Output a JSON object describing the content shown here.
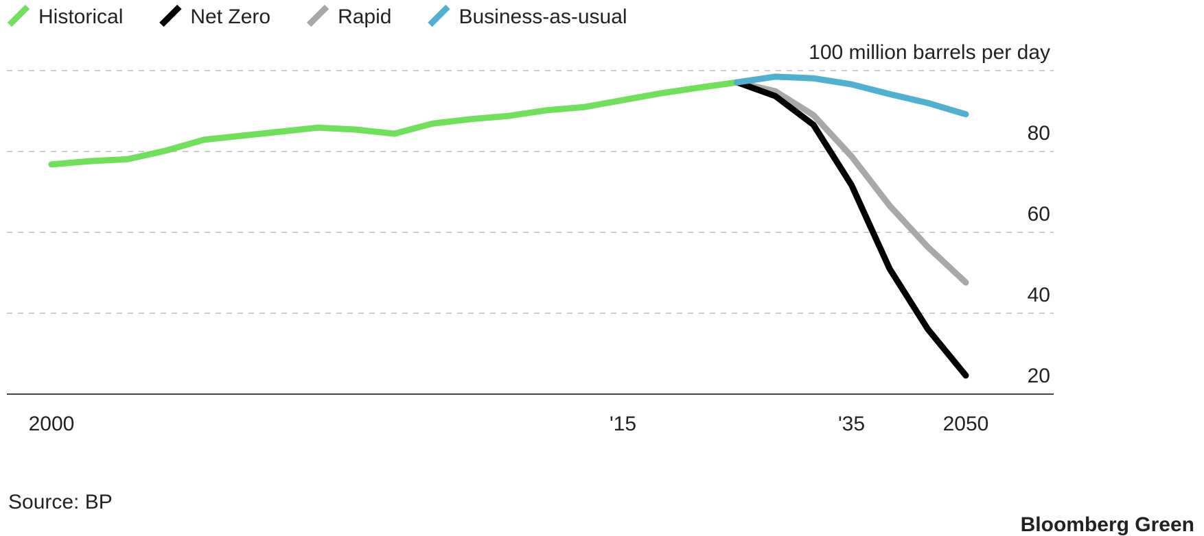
{
  "chart_data": {
    "type": "line",
    "categories": [
      "2000",
      null,
      null,
      null,
      null,
      null,
      null,
      null,
      null,
      null,
      null,
      null,
      null,
      null,
      null,
      "'15",
      null,
      null,
      null,
      null,
      null,
      "'35",
      null,
      null,
      "2050"
    ],
    "series": [
      {
        "name": "Historical",
        "color": "#6ee05a",
        "values": [
          76.8,
          77.6,
          78.1,
          80.2,
          82.9,
          83.9,
          84.9,
          85.9,
          85.4,
          84.4,
          86.9,
          88.0,
          88.8,
          90.2,
          91.0,
          92.7,
          94.4,
          95.8,
          97.1,
          null,
          null,
          null,
          null,
          null,
          null
        ]
      },
      {
        "name": "Net Zero",
        "color": "#000000",
        "values": [
          null,
          null,
          null,
          null,
          null,
          null,
          null,
          null,
          null,
          null,
          null,
          null,
          null,
          null,
          null,
          null,
          null,
          null,
          97.1,
          93.7,
          86.6,
          71.7,
          51.0,
          36.1,
          24.6
        ]
      },
      {
        "name": "Rapid",
        "color": "#a8a8a8",
        "values": [
          null,
          null,
          null,
          null,
          null,
          null,
          null,
          null,
          null,
          null,
          null,
          null,
          null,
          null,
          null,
          null,
          null,
          null,
          97.1,
          94.9,
          89.0,
          78.8,
          66.6,
          56.4,
          47.6
        ]
      },
      {
        "name": "Business-as-usual",
        "color": "#4fb0d0",
        "values": [
          null,
          null,
          null,
          null,
          null,
          null,
          null,
          null,
          null,
          null,
          null,
          null,
          null,
          null,
          null,
          null,
          null,
          null,
          97.1,
          98.5,
          98.1,
          96.6,
          94.2,
          92.0,
          89.2
        ]
      }
    ],
    "ylim": [
      20,
      100
    ],
    "yticks": [
      20,
      40,
      60,
      80,
      {
        "value": 100,
        "label": "100 million barrels per day"
      }
    ],
    "grid": true,
    "source": "Source: BP",
    "brand": "Bloomberg Green"
  }
}
